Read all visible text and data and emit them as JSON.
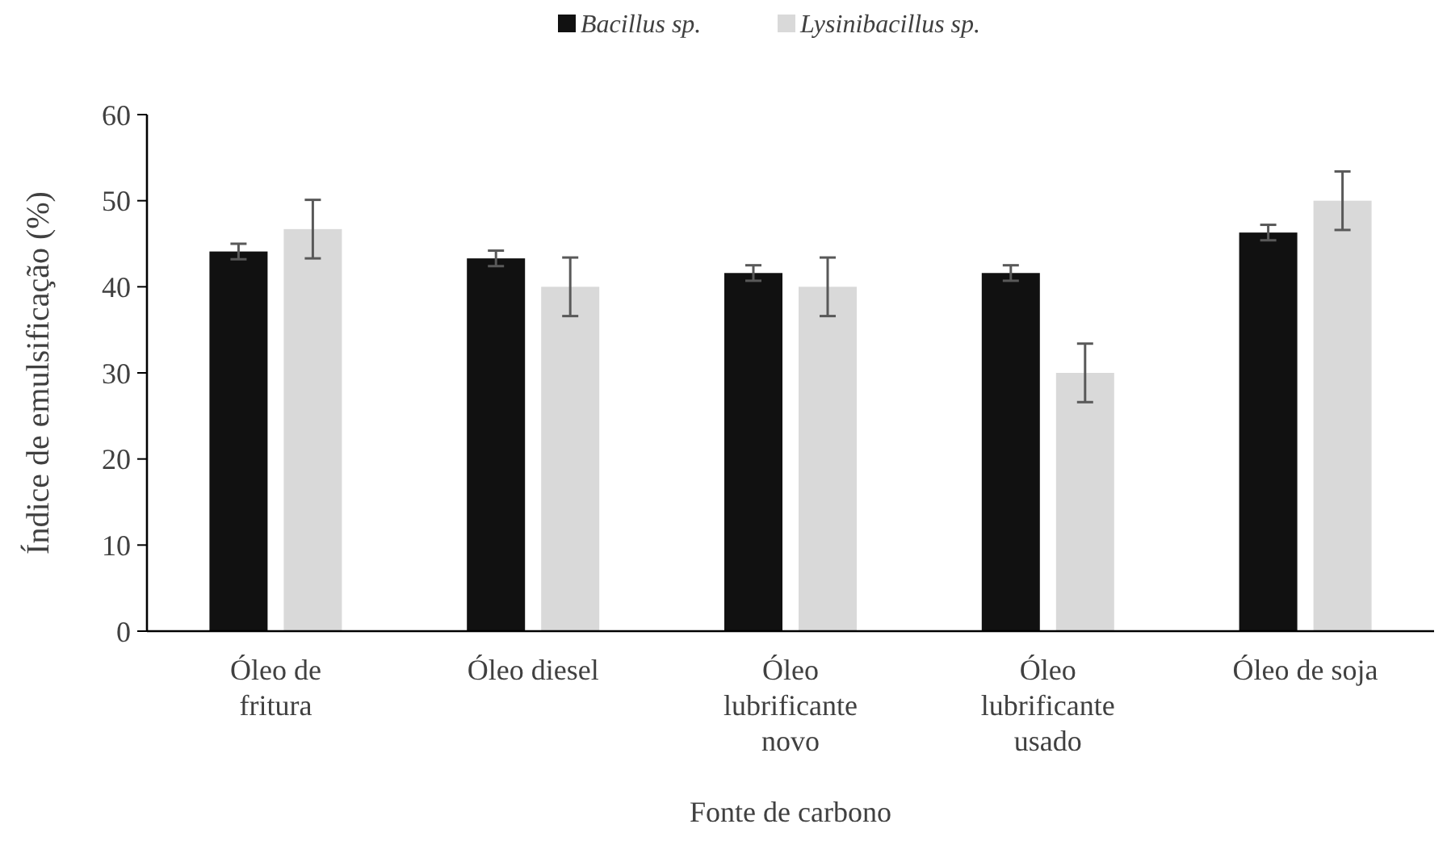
{
  "chart_data": {
    "type": "bar",
    "xlabel": "Fonte de carbono",
    "ylabel": "Índice de emulsificação (%)",
    "categories": [
      "Óleo de fritura",
      "Óleo diesel",
      "Óleo lubrificante novo",
      "Óleo lubrificante usado",
      "Óleo de soja"
    ],
    "series": [
      {
        "name": "Bacillus sp.",
        "color": "#111111",
        "values": [
          44.1,
          43.3,
          41.6,
          41.6,
          46.3
        ],
        "errors": [
          0.9,
          0.9,
          0.9,
          0.9,
          0.9
        ]
      },
      {
        "name": "Lysinibacillus sp.",
        "color": "#d9d9d9",
        "values": [
          46.7,
          40,
          40,
          30,
          50
        ],
        "errors": [
          3.4,
          3.4,
          3.4,
          3.4,
          3.4
        ]
      }
    ],
    "ylim": [
      0,
      60
    ],
    "yticks": [
      0,
      10,
      20,
      30,
      40,
      50,
      60
    ],
    "grid": false,
    "legend": "top"
  }
}
